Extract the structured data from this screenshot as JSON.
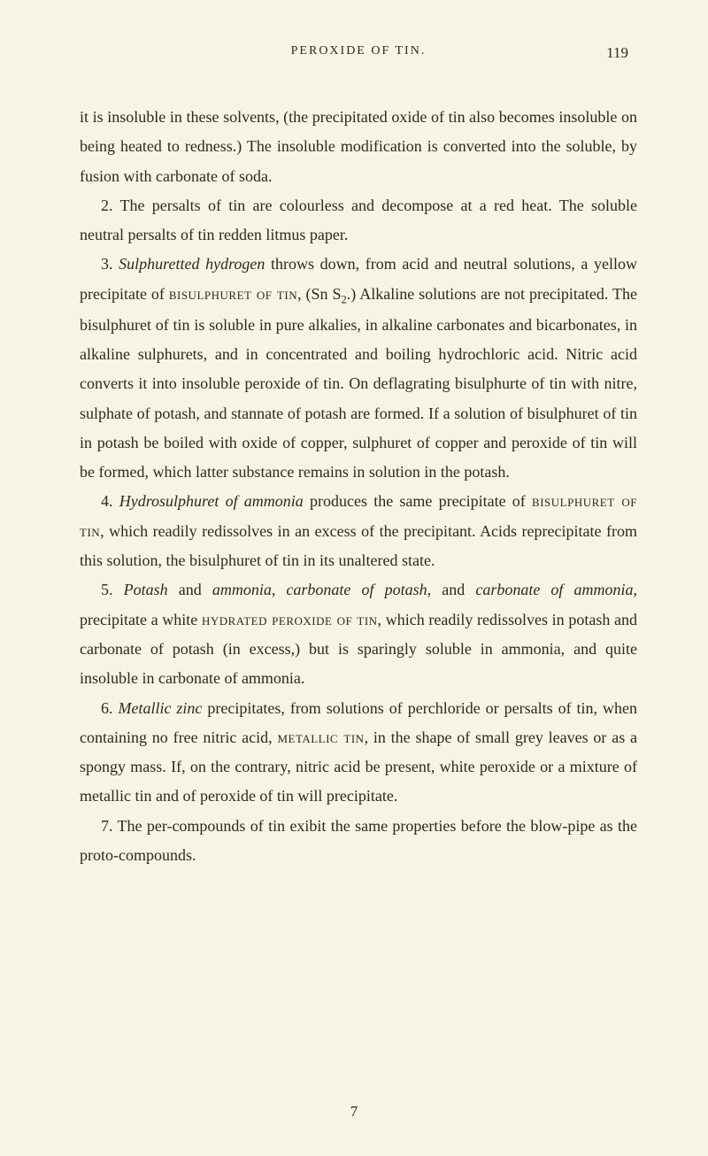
{
  "header": {
    "running_title": "PEROXIDE OF TIN.",
    "page_number": "119"
  },
  "paragraphs": {
    "p1": "it is insoluble in these solvents, (the precipitated oxide of tin also becomes insoluble on being heated to redness.) The insoluble modification is converted into the soluble, by fusion with carbonate of soda.",
    "p2_a": "2. The persalts of tin are colourless and decompose at a red heat. The soluble neutral persalts of tin redden litmus paper.",
    "p3_a": "3. ",
    "p3_italic1": "Sulphuretted hydrogen",
    "p3_b": " throws down, from acid and neutral solutions, a yellow precipitate of ",
    "p3_sc1": "bisulphuret of tin",
    "p3_c": ", (Sn S",
    "p3_sub": "2",
    "p3_d": ".) Alkaline solutions are not precipitated. The bisulphuret of tin is soluble in pure alkalies, in alkaline carbonates and bicarbonates, in alkaline sulphurets, and in concentrated and boiling hydrochloric acid. Nitric acid converts it into insoluble peroxide of tin. On deflagrating bisulphurte of tin with nitre, sulphate of potash, and stannate of potash are formed. If a solution of bisulphuret of tin in potash be boiled with oxide of copper, sulphuret of copper and peroxide of tin will be formed, which latter substance remains in solution in the potash.",
    "p4_a": "4. ",
    "p4_italic1": "Hydrosulphuret of ammonia",
    "p4_b": " produces the same precipitate of ",
    "p4_sc1": "bisulphuret of tin",
    "p4_c": ", which readily redissolves in an excess of the precipitant. Acids reprecipitate from this solution, the bisulphuret of tin in its unaltered state.",
    "p5_a": "5. ",
    "p5_italic1": "Potash",
    "p5_b": " and ",
    "p5_italic2": "ammonia, carbonate of potash",
    "p5_c": ", and ",
    "p5_italic3": "carbonate of ammonia",
    "p5_d": ", precipitate a white ",
    "p5_sc1": "hydrated peroxide of tin",
    "p5_e": ", which readily redissolves in potash and carbonate of potash (in excess,) but is sparingly soluble in ammonia, and quite insoluble in carbonate of ammonia.",
    "p6_a": "6. ",
    "p6_italic1": "Metallic zinc",
    "p6_b": " precipitates, from solutions of perchloride or persalts of tin, when containing no free nitric acid, ",
    "p6_sc1": "metallic tin",
    "p6_c": ", in the shape of small grey leaves or as a spongy mass. If, on the contrary, nitric acid be present, white peroxide or a mixture of metallic tin and of peroxide of tin will precipitate.",
    "p7": "7. The per-compounds of tin exibit the same properties before the blow-pipe as the proto-compounds."
  },
  "footer": {
    "sheet_number": "7"
  },
  "colors": {
    "background": "#f8f4e4",
    "text": "#2a2a1f"
  },
  "typography": {
    "body_fontsize": 18,
    "header_fontsize": 14,
    "line_height": 1.85,
    "font_family": "Georgia, Times New Roman, serif"
  }
}
